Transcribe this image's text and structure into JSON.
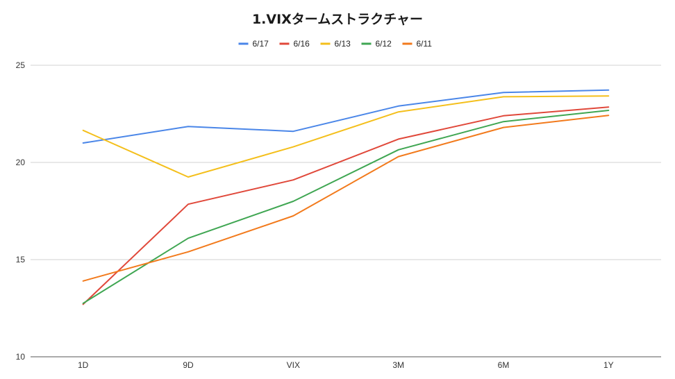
{
  "chart_data": {
    "type": "line",
    "title": "1.VIXタームストラクチャー",
    "xlabel": "",
    "ylabel": "",
    "categories": [
      "1D",
      "9D",
      "VIX",
      "3M",
      "6M",
      "1Y"
    ],
    "yticks": [
      "10",
      "15",
      "20",
      "25"
    ],
    "ylim": [
      10,
      25
    ],
    "grid": true,
    "legend_position": "top",
    "series": [
      {
        "name": "6/17",
        "color": "#4a86e8",
        "values": [
          21.0,
          21.85,
          21.6,
          22.9,
          23.6,
          23.72
        ]
      },
      {
        "name": "6/16",
        "color": "#e0483a",
        "values": [
          12.7,
          17.85,
          19.1,
          21.2,
          22.4,
          22.85
        ]
      },
      {
        "name": "6/13",
        "color": "#f4bf1b",
        "values": [
          21.65,
          19.25,
          20.8,
          22.6,
          23.38,
          23.42
        ]
      },
      {
        "name": "6/12",
        "color": "#3fa652",
        "values": [
          12.75,
          16.1,
          18.0,
          20.65,
          22.1,
          22.68
        ]
      },
      {
        "name": "6/11",
        "color": "#f27a1c",
        "values": [
          13.9,
          15.4,
          17.25,
          20.3,
          21.8,
          22.42
        ]
      }
    ]
  }
}
